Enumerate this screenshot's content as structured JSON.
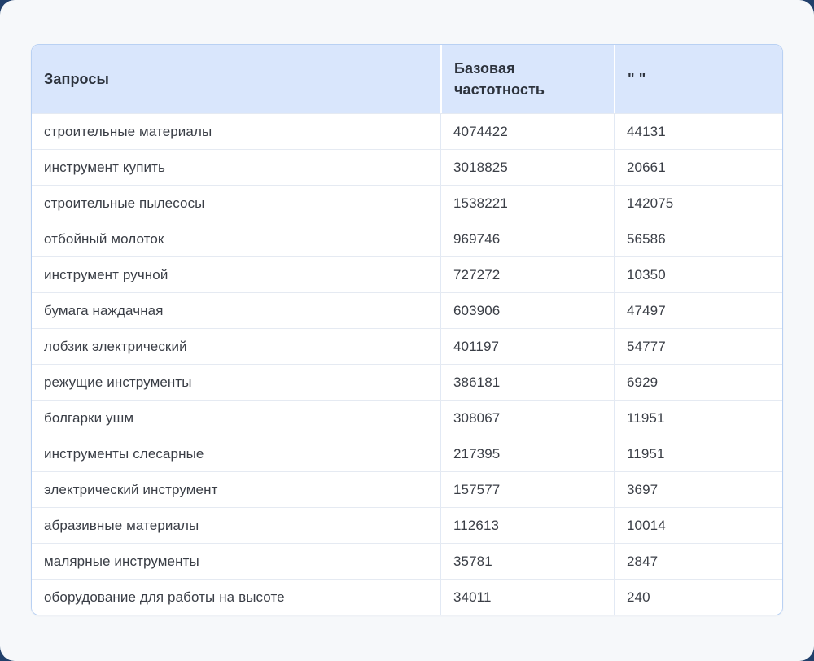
{
  "colors": {
    "page_background": "#21406b",
    "surface_background": "#f6f8fa",
    "header_background": "#d9e6fc",
    "table_border": "#b9d1f3",
    "row_divider": "#e5eaf2",
    "header_text": "#2d333d",
    "body_text": "#3a3e46"
  },
  "table": {
    "columns": [
      {
        "label": "Запросы"
      },
      {
        "label": "Базовая частотность"
      },
      {
        "label": "\" \""
      }
    ],
    "rows": [
      {
        "query": "строительные материалы",
        "base_frequency": "4074422",
        "exact_frequency": "44131"
      },
      {
        "query": "инструмент купить",
        "base_frequency": "3018825",
        "exact_frequency": "20661"
      },
      {
        "query": "строительные пылесосы",
        "base_frequency": "1538221",
        "exact_frequency": "142075"
      },
      {
        "query": "отбойный молоток",
        "base_frequency": "969746",
        "exact_frequency": "56586"
      },
      {
        "query": "инструмент ручной",
        "base_frequency": "727272",
        "exact_frequency": "10350"
      },
      {
        "query": "бумага наждачная",
        "base_frequency": "603906",
        "exact_frequency": "47497"
      },
      {
        "query": "лобзик электрический",
        "base_frequency": "401197",
        "exact_frequency": "54777"
      },
      {
        "query": "режущие инструменты",
        "base_frequency": "386181",
        "exact_frequency": "6929"
      },
      {
        "query": "болгарки ушм",
        "base_frequency": "308067",
        "exact_frequency": "11951"
      },
      {
        "query": "инструменты слесарные",
        "base_frequency": "217395",
        "exact_frequency": "11951"
      },
      {
        "query": "электрический инструмент",
        "base_frequency": "157577",
        "exact_frequency": "3697"
      },
      {
        "query": "абразивные материалы",
        "base_frequency": "112613",
        "exact_frequency": "10014"
      },
      {
        "query": "малярные инструменты",
        "base_frequency": "35781",
        "exact_frequency": "2847"
      },
      {
        "query": "оборудование для работы на высоте",
        "base_frequency": "34011",
        "exact_frequency": "240"
      }
    ]
  }
}
